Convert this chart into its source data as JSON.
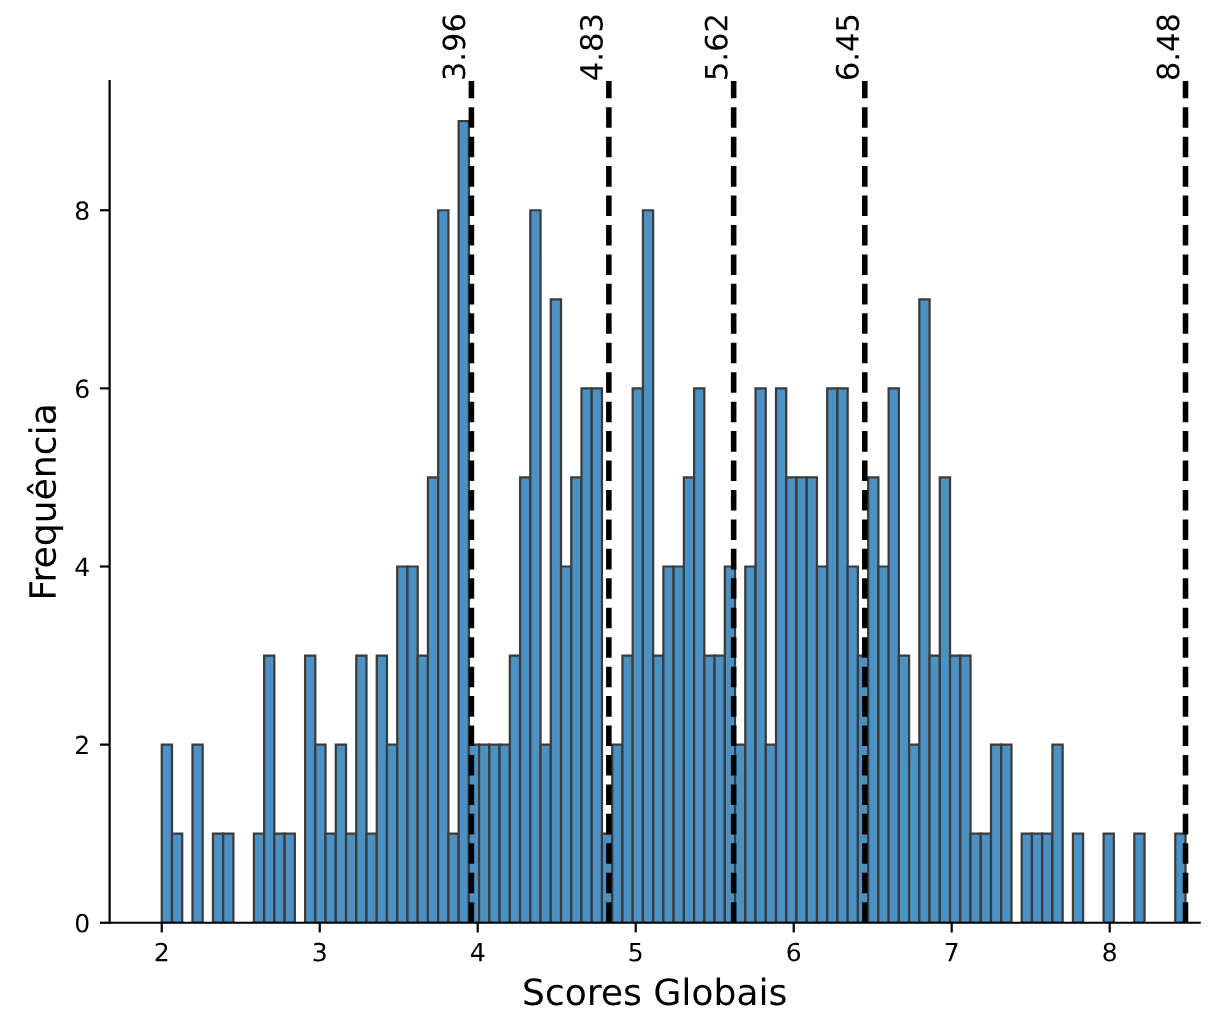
{
  "chart_data": {
    "type": "histogram",
    "xlabel": "Scores Globais",
    "ylabel": "Frequência",
    "bins": [
      2.0,
      2.0648,
      2.1296,
      2.1944,
      2.2592,
      2.324,
      2.3888,
      2.4536,
      2.5184,
      2.5832,
      2.648,
      2.7128,
      2.7776,
      2.8424,
      2.9072,
      2.972,
      3.0368,
      3.1016,
      3.1664,
      3.2312,
      3.296,
      3.3608,
      3.4256,
      3.4904,
      3.5552,
      3.62,
      3.6848,
      3.7496,
      3.8144,
      3.8792,
      3.944,
      4.0088,
      4.0736,
      4.1384,
      4.2032,
      4.268,
      4.3328,
      4.3976,
      4.4624,
      4.5272,
      4.592,
      4.6568,
      4.7216,
      4.7864,
      4.8512,
      4.916,
      4.9808,
      5.0456,
      5.1104,
      5.1752,
      5.24,
      5.3048,
      5.3696,
      5.4344,
      5.4992,
      5.564,
      5.6288,
      5.6936,
      5.7584,
      5.8232,
      5.888,
      5.9528,
      6.0176,
      6.0824,
      6.1472,
      6.212,
      6.2768,
      6.3416,
      6.4064,
      6.4712,
      6.536,
      6.6008,
      6.6656,
      6.7304,
      6.7952,
      6.86,
      6.9248,
      6.9896,
      7.0544,
      7.1192,
      7.184,
      7.2488,
      7.3136,
      7.3784,
      7.4432,
      7.508,
      7.5728,
      7.6376,
      7.7024,
      7.7672,
      7.832,
      7.8968,
      7.9616,
      8.0264,
      8.0912,
      8.156,
      8.2208,
      8.2856,
      8.3504,
      8.4152,
      8.48
    ],
    "values": [
      2,
      1,
      0,
      2,
      0,
      1,
      1,
      0,
      0,
      1,
      3,
      1,
      1,
      0,
      3,
      2,
      1,
      2,
      1,
      3,
      1,
      3,
      2,
      4,
      4,
      3,
      5,
      8,
      1,
      9,
      2,
      2,
      2,
      2,
      3,
      5,
      8,
      2,
      7,
      4,
      5,
      6,
      6,
      1,
      2,
      3,
      6,
      8,
      3,
      4,
      4,
      5,
      6,
      3,
      3,
      4,
      2,
      4,
      6,
      2,
      6,
      5,
      5,
      5,
      4,
      6,
      6,
      4,
      3,
      5,
      4,
      6,
      3,
      2,
      7,
      3,
      5,
      3,
      3,
      1,
      1,
      2,
      2,
      0,
      1,
      1,
      1,
      2,
      0,
      1,
      0,
      0,
      1,
      0,
      0,
      1,
      0,
      0,
      0,
      1
    ],
    "color": "#4c91c3",
    "xlim": [
      1.67,
      8.57
    ],
    "ylim": [
      0,
      9.45
    ],
    "xticks": [
      2,
      3,
      4,
      5,
      6,
      7,
      8
    ],
    "yticks": [
      0,
      2,
      4,
      6,
      8
    ],
    "ref_lines": [
      {
        "axis": "x",
        "value": 3.96,
        "label": "3.96",
        "color": "#000000",
        "line_style": "dashed"
      },
      {
        "axis": "x",
        "value": 4.83,
        "label": "4.83",
        "color": "#000000",
        "line_style": "dashed"
      },
      {
        "axis": "x",
        "value": 5.62,
        "label": "5.62",
        "color": "#000000",
        "line_style": "dashed"
      },
      {
        "axis": "x",
        "value": 6.45,
        "label": "6.45",
        "color": "#000000",
        "line_style": "dashed"
      },
      {
        "axis": "x",
        "value": 8.48,
        "label": "8.48",
        "color": "#000000",
        "line_style": "dashed"
      }
    ],
    "grid": false,
    "legend": false
  }
}
